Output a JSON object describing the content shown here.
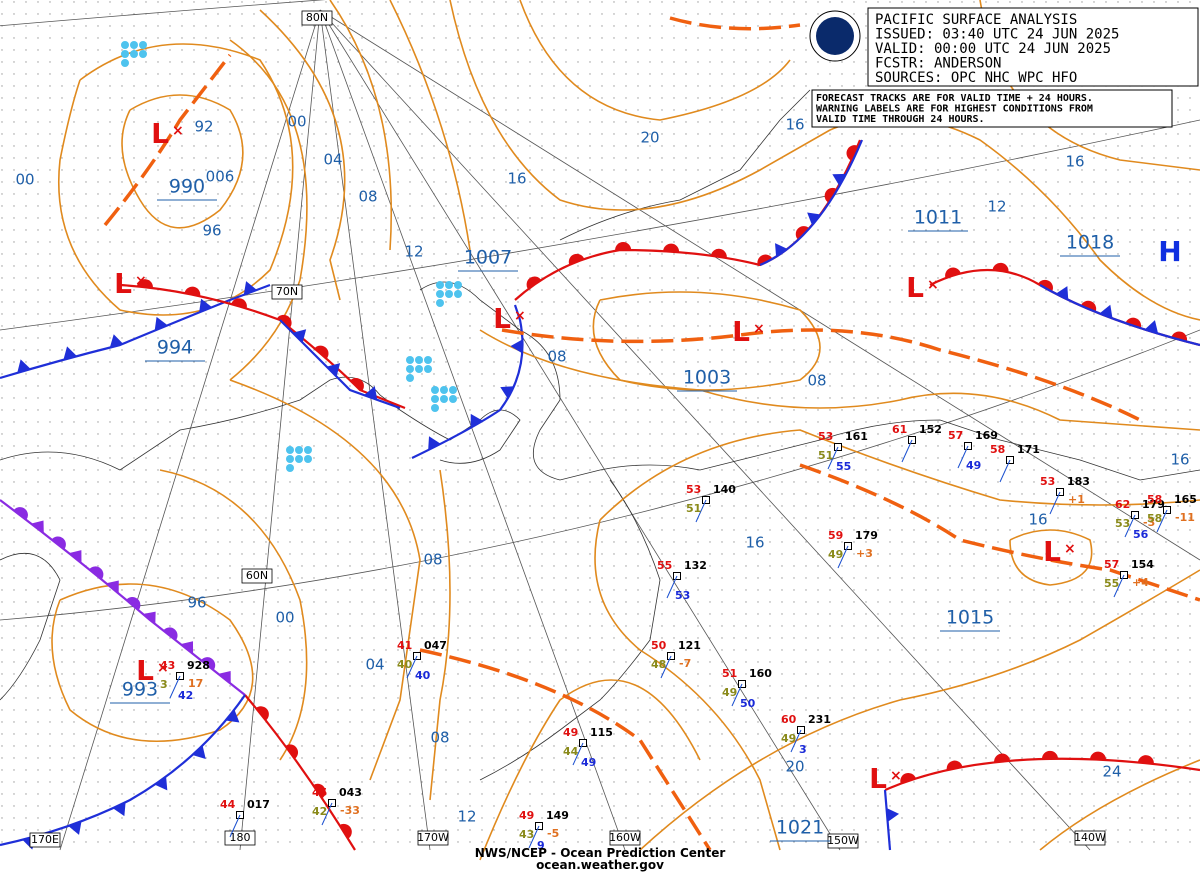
{
  "header": {
    "lines": [
      "PACIFIC SURFACE ANALYSIS",
      "ISSUED: 03:40 UTC 24 JUN 2025",
      "VALID:  00:00 UTC 24 JUN 2025",
      "FCSTR:  ANDERSON",
      "SOURCES: OPC NHC WPC HFO"
    ]
  },
  "note": [
    "FORECAST TRACKS ARE FOR VALID TIME + 24 HOURS.",
    "WARNING LABELS ARE FOR HIGHEST CONDITIONS FROM",
    "VALID TIME THROUGH 24 HOURS."
  ],
  "footer": [
    "NWS/NCEP - Ocean Prediction Center",
    "ocean.weather.gov"
  ],
  "grid_labels": [
    "80N",
    "70N",
    "60N",
    "170E",
    "180",
    "170W",
    "160W",
    "150W",
    "140W"
  ],
  "centers": [
    {
      "kind": "L",
      "pressure": "990"
    },
    {
      "kind": "L",
      "pressure": "994"
    },
    {
      "kind": "L",
      "pressure": "1007"
    },
    {
      "kind": "L",
      "pressure": "1003"
    },
    {
      "kind": "L",
      "pressure": "1011"
    },
    {
      "kind": "H",
      "pressure": "1018"
    },
    {
      "kind": "L",
      "pressure": "1015"
    },
    {
      "kind": "L",
      "pressure": "993"
    },
    {
      "kind": "L",
      "pressure": "1021"
    }
  ],
  "isobar_labels": [
    "92",
    "00",
    "04",
    "08",
    "12",
    "16",
    "20",
    "16",
    "12",
    "16",
    "16",
    "16",
    "08",
    "08",
    "16",
    "96",
    "00",
    "08",
    "96",
    "00",
    "04",
    "08",
    "12",
    "20",
    "24",
    "006"
  ],
  "stations": [
    {
      "temp": "53",
      "pressure": "161",
      "dew": "51",
      "extra": "55"
    },
    {
      "temp": "61",
      "pressure": "152"
    },
    {
      "temp": "57",
      "pressure": "169",
      "extra": "49"
    },
    {
      "temp": "58",
      "pressure": "171"
    },
    {
      "temp": "53",
      "pressure": "183",
      "tend": "+1"
    },
    {
      "temp": "62",
      "pressure": "179",
      "dew": "53",
      "extra": "56",
      "tend": "-3"
    },
    {
      "temp": "58",
      "pressure": "165",
      "dew": "58",
      "tend": "-11"
    },
    {
      "temp": "59",
      "pressure": "179",
      "dew": "49",
      "tend": "+3"
    },
    {
      "temp": "57",
      "pressure": "154",
      "dew": "55",
      "tend": "+4"
    },
    {
      "temp": "53",
      "pressure": "140",
      "dew": "51"
    },
    {
      "temp": "55",
      "pressure": "132",
      "extra": "53"
    },
    {
      "temp": "50",
      "pressure": "121",
      "dew": "48",
      "tend": "-7"
    },
    {
      "temp": "51",
      "pressure": "160",
      "dew": "49",
      "extra": "50"
    },
    {
      "temp": "60",
      "pressure": "231",
      "dew": "49",
      "extra": "3"
    },
    {
      "temp": "49",
      "pressure": "115",
      "dew": "44",
      "extra": "49"
    },
    {
      "temp": "49",
      "pressure": "149",
      "dew": "43",
      "extra": "9",
      "tend": "-5"
    },
    {
      "temp": "41",
      "pressure": "047",
      "dew": "40",
      "extra": "40"
    },
    {
      "temp": "43",
      "pressure": "928",
      "dew": "3",
      "extra": "42",
      "tend": "17"
    },
    {
      "temp": "44",
      "pressure": "017"
    },
    {
      "temp": "45",
      "pressure": "043",
      "dew": "42",
      "tend": "-33"
    }
  ]
}
